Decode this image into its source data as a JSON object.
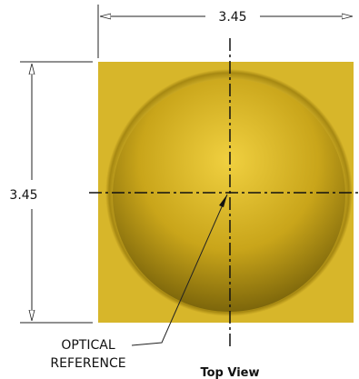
{
  "dimensions": {
    "width": "3.45",
    "height": "3.45"
  },
  "callout": {
    "lines": [
      "OPTICAL",
      "REFERENCE"
    ]
  },
  "view_label": "Top View"
}
